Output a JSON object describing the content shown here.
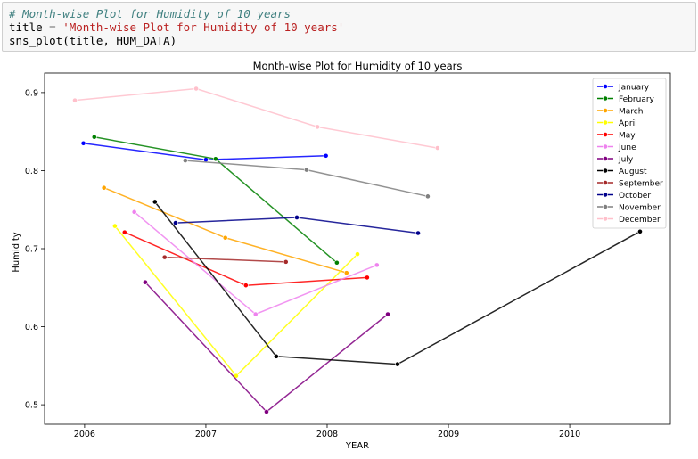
{
  "code_cell": {
    "comment": "# Month-wise Plot for Humidity of 10 years",
    "line2_var": "title",
    "line2_op": " = ",
    "line2_string": "'Month-wise Plot for Humidity of 10 years'",
    "line3": "sns_plot(title, HUM_DATA)"
  },
  "chart_data": {
    "type": "line",
    "title": "Month-wise Plot for Humidity of 10 years",
    "xlabel": "YEAR",
    "ylabel": "Humidity",
    "xlim": [
      2005.67,
      2010.83
    ],
    "ylim": [
      0.475,
      0.925
    ],
    "xticks": [
      2006,
      2007,
      2008,
      2009,
      2010
    ],
    "xtick_labels": [
      "2006",
      "2007",
      "2008",
      "2009",
      "2010"
    ],
    "yticks": [
      0.5,
      0.6,
      0.7,
      0.8,
      0.9
    ],
    "ytick_labels": [
      "0.5",
      "0.6",
      "0.7",
      "0.8",
      "0.9"
    ],
    "grid": false,
    "legend_position": "top-right",
    "series": [
      {
        "name": "January",
        "color": "#0000ff",
        "points": [
          [
            2005.99,
            0.835
          ],
          [
            2007.0,
            0.814
          ],
          [
            2007.99,
            0.819
          ]
        ]
      },
      {
        "name": "February",
        "color": "#008000",
        "points": [
          [
            2006.08,
            0.843
          ],
          [
            2007.08,
            0.815
          ],
          [
            2008.08,
            0.682
          ]
        ]
      },
      {
        "name": "March",
        "color": "#ffa500",
        "points": [
          [
            2006.16,
            0.778
          ],
          [
            2007.16,
            0.714
          ],
          [
            2008.16,
            0.669
          ]
        ]
      },
      {
        "name": "April",
        "color": "#ffff00",
        "points": [
          [
            2006.25,
            0.729
          ],
          [
            2007.25,
            0.537
          ],
          [
            2008.25,
            0.693
          ]
        ]
      },
      {
        "name": "May",
        "color": "#ff0000",
        "points": [
          [
            2006.33,
            0.721
          ],
          [
            2007.33,
            0.653
          ],
          [
            2008.33,
            0.663
          ]
        ]
      },
      {
        "name": "June",
        "color": "#ee82ee",
        "points": [
          [
            2006.41,
            0.747
          ],
          [
            2007.41,
            0.616
          ],
          [
            2008.41,
            0.679
          ]
        ]
      },
      {
        "name": "July",
        "color": "#800080",
        "points": [
          [
            2006.5,
            0.657
          ],
          [
            2007.5,
            0.491
          ],
          [
            2008.5,
            0.616
          ]
        ]
      },
      {
        "name": "August",
        "color": "#000000",
        "points": [
          [
            2006.58,
            0.76
          ],
          [
            2007.58,
            0.562
          ],
          [
            2008.58,
            0.552
          ],
          [
            2010.58,
            0.722
          ]
        ]
      },
      {
        "name": "September",
        "color": "#a52a2a",
        "points": [
          [
            2006.66,
            0.689
          ],
          [
            2007.66,
            0.683
          ]
        ]
      },
      {
        "name": "October",
        "color": "#00008b",
        "points": [
          [
            2006.75,
            0.733
          ],
          [
            2007.75,
            0.74
          ],
          [
            2008.75,
            0.72
          ]
        ]
      },
      {
        "name": "November",
        "color": "#808080",
        "points": [
          [
            2006.83,
            0.813
          ],
          [
            2007.83,
            0.801
          ],
          [
            2008.83,
            0.767
          ]
        ]
      },
      {
        "name": "December",
        "color": "#ffc0cb",
        "points": [
          [
            2005.92,
            0.89
          ],
          [
            2006.92,
            0.905
          ],
          [
            2007.92,
            0.856
          ],
          [
            2008.91,
            0.829
          ]
        ]
      }
    ]
  }
}
